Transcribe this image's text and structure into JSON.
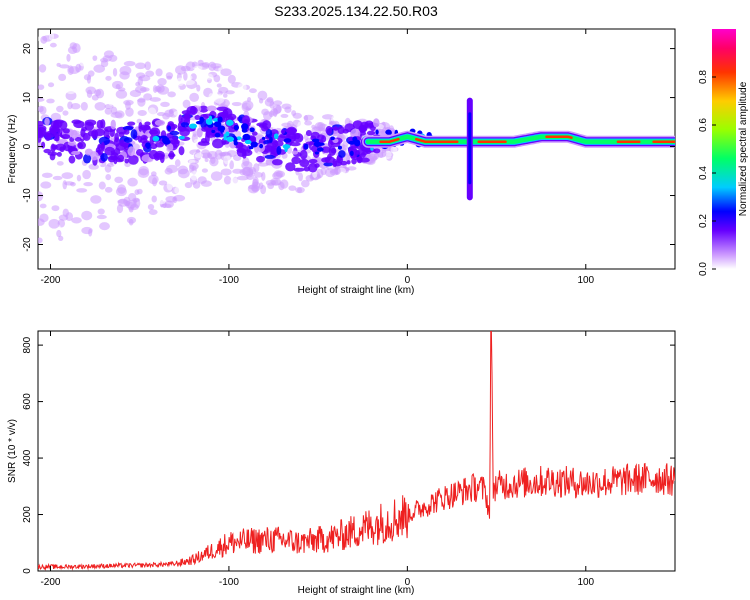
{
  "figure": {
    "title": "S233.2025.134.22.50.R03"
  },
  "chart_data": [
    {
      "type": "heatmap",
      "title": "S233.2025.134.22.50.R03",
      "xlabel": "Height of straight line (km)",
      "ylabel": "Frequency (Hz)",
      "xlim": [
        -207,
        150
      ],
      "ylim": [
        -25,
        24
      ],
      "x_ticks": [
        -200,
        -100,
        0,
        100
      ],
      "y_ticks": [
        -20,
        -10,
        0,
        10,
        20
      ],
      "grid": false,
      "colorbar": {
        "label": "Normalized spectral amplitude",
        "range": [
          0.0,
          1.0
        ],
        "ticks": [
          0.0,
          0.2,
          0.4,
          0.6,
          0.8
        ],
        "colormap": [
          "#ffffff",
          "#cc99ff",
          "#6600ff",
          "#0000ff",
          "#00ccff",
          "#00ff66",
          "#99ff00",
          "#ffcc00",
          "#ff3300",
          "#ff0066",
          "#ff00cc"
        ]
      },
      "ridge_center_hz": {
        "x": [
          -205,
          -180,
          -160,
          -140,
          -120,
          -110,
          -100,
          -80,
          -60,
          -40,
          -25,
          -10,
          0,
          10,
          20,
          30,
          40,
          60,
          75,
          90,
          100,
          110,
          120,
          140,
          150
        ],
        "y": [
          2,
          1,
          1,
          1,
          4,
          5,
          3,
          1,
          -1,
          0,
          1,
          1,
          2,
          1,
          1,
          1,
          1,
          1,
          2,
          2,
          1,
          1,
          1,
          1,
          1
        ]
      },
      "spike_x": 35,
      "spike_hz_range": [
        -11,
        10
      ]
    },
    {
      "type": "line",
      "xlabel": "Height of straight line (km)",
      "ylabel": "SNR (10 * v/v)",
      "xlim": [
        -207,
        150
      ],
      "ylim": [
        0,
        850
      ],
      "x_ticks": [
        -200,
        -100,
        0,
        100
      ],
      "y_ticks": [
        0,
        200,
        400,
        600,
        800
      ],
      "grid": false,
      "series": [
        {
          "color": "#ee2020",
          "x": [
            -207,
            -190,
            -170,
            -150,
            -130,
            -120,
            -110,
            -100,
            -90,
            -80,
            -70,
            -60,
            -50,
            -40,
            -30,
            -20,
            -10,
            0,
            10,
            20,
            30,
            40,
            44,
            46,
            47,
            48,
            60,
            80,
            100,
            120,
            140,
            150
          ],
          "y": [
            15,
            15,
            18,
            20,
            25,
            40,
            70,
            100,
            105,
            110,
            110,
            100,
            110,
            120,
            140,
            160,
            180,
            200,
            230,
            260,
            280,
            300,
            280,
            190,
            850,
            300,
            310,
            320,
            310,
            320,
            330,
            320
          ]
        }
      ]
    }
  ]
}
